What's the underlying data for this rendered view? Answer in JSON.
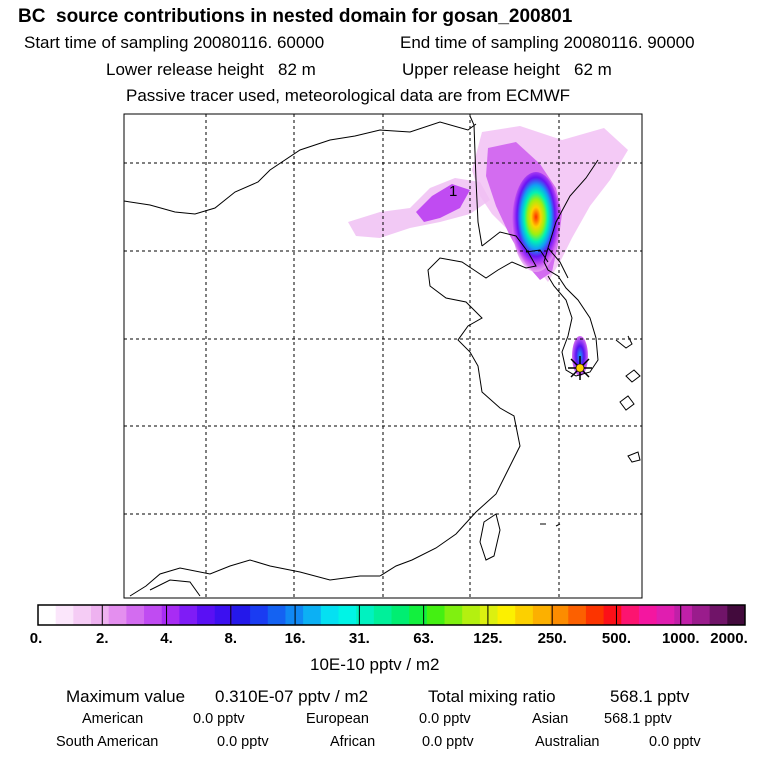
{
  "title": "BC  source contributions in nested domain for gosan_200801",
  "sampling": {
    "start": "Start time of sampling 20080116. 60000",
    "end": "End time of sampling 20080116. 90000"
  },
  "release": {
    "lower": "Lower release height   82 m",
    "upper": "Upper release height   62 m"
  },
  "tracer_note": "Passive tracer used, meteorological data are from ECMWF",
  "map": {
    "contour_label": "1",
    "receptor_marker": "star-marker",
    "plume_peak_color": "#ff2a00"
  },
  "colorbar": {
    "ticks": [
      "0.",
      "2.",
      "4.",
      "8.",
      "16.",
      "31.",
      "63.",
      "125.",
      "250.",
      "500.",
      "1000.",
      "2000."
    ],
    "unit": "10E-10 pptv / m2",
    "colors": [
      "#ffffff",
      "#fbe6fb",
      "#f5ccf5",
      "#eeb2f0",
      "#e48fef",
      "#d36cf0",
      "#c04bf2",
      "#a82cf4",
      "#7f1cf6",
      "#5a10f4",
      "#3c10f0",
      "#2418ea",
      "#1a3cf2",
      "#1462f2",
      "#1088f4",
      "#0cb0f4",
      "#05e0f2",
      "#00f4e6",
      "#00f2c0",
      "#00f09a",
      "#00ee72",
      "#12f03e",
      "#44f012",
      "#80f010",
      "#b4f010",
      "#dcf010",
      "#fcf000",
      "#fcd000",
      "#fcb000",
      "#fc8c00",
      "#fc6000",
      "#fc3400",
      "#fc1018",
      "#fc1470",
      "#f416a0",
      "#e01eb0",
      "#c020a8",
      "#9a1c8c",
      "#701468",
      "#420a3c"
    ]
  },
  "summary": {
    "max_label": "Maximum value",
    "max_value": "0.310E-07 pptv / m2",
    "total_label": "Total mixing ratio",
    "total_value": "568.1 pptv"
  },
  "regions": {
    "american_label": "American",
    "american_value": "0.0 pptv",
    "european_label": "European",
    "european_value": "0.0 pptv",
    "asian_label": "Asian",
    "asian_value": "568.1 pptv",
    "south_american_label": "South American",
    "south_american_value": "0.0 pptv",
    "african_label": "African",
    "african_value": "0.0 pptv",
    "australian_label": "Australian",
    "australian_value": "0.0 pptv"
  }
}
